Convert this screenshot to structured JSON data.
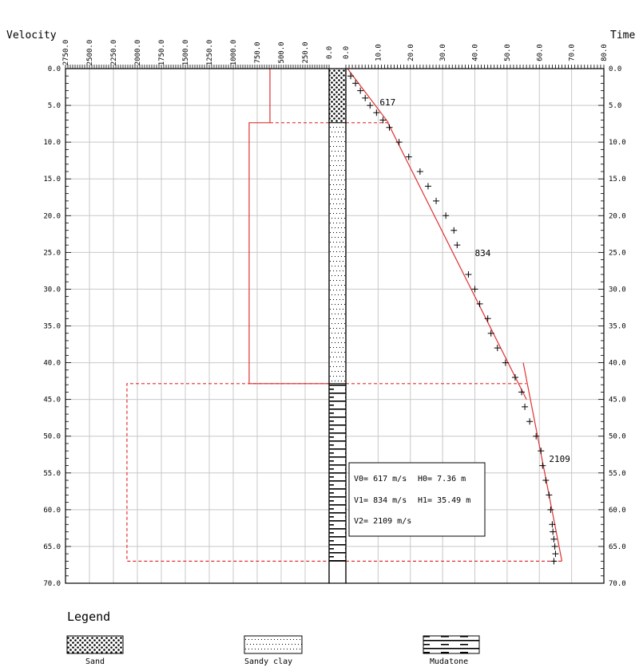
{
  "header": {
    "velocity_label": "Velocity",
    "time_label": "Time"
  },
  "legend": {
    "title": "Legend",
    "items": [
      {
        "key": "sand",
        "label": "Sand"
      },
      {
        "key": "sandy_clay",
        "label": "Sandy clay"
      },
      {
        "key": "mudstone",
        "label": "Mudatone"
      }
    ]
  },
  "results": {
    "v0": "V0=   617 m/s",
    "h0": "H0=  7.36 m",
    "v1": "V1=   834 m/s",
    "h1": "H1= 35.49 m",
    "v2": "V2=  2109 m/s"
  },
  "colors": {
    "grid": "#c8c8c8",
    "fit": "#e03030",
    "axis": "#000000"
  },
  "chart_data": {
    "type": "scatter",
    "depth_axis": {
      "range": [
        0,
        70
      ],
      "ticks": [
        0,
        5,
        10,
        15,
        20,
        25,
        30,
        35,
        40,
        45,
        50,
        55,
        60,
        65,
        70
      ],
      "tick_labels": [
        "0.0",
        "5.0",
        "10.0",
        "15.0",
        "20.0",
        "25.0",
        "30.0",
        "35.0",
        "40.0",
        "45.0",
        "50.0",
        "55.0",
        "60.0",
        "65.0",
        "70.0"
      ]
    },
    "velocity_axis": {
      "label": "Velocity",
      "reversed": true,
      "range": [
        0,
        2750
      ],
      "ticks": [
        2750,
        2500,
        2250,
        2000,
        1750,
        1500,
        1250,
        1000,
        750,
        500,
        250,
        0
      ],
      "tick_labels": [
        "2750.0",
        "2500.0",
        "2250.0",
        "2000.0",
        "1750.0",
        "1500.0",
        "1250.0",
        "1000.0",
        "750.0",
        "500.0",
        "250.0",
        "0.0"
      ]
    },
    "time_axis": {
      "label": "Time",
      "range": [
        0,
        80
      ],
      "ticks": [
        0,
        10,
        20,
        30,
        40,
        50,
        60,
        70,
        80
      ],
      "tick_labels": [
        "0.0",
        "10.0",
        "20.0",
        "30.0",
        "40.0",
        "50.0",
        "60.0",
        "70.0",
        "80.0"
      ]
    },
    "layers": [
      {
        "lithology": "sand",
        "top": 0,
        "bottom": 7.36
      },
      {
        "lithology": "sandy_clay",
        "top": 7.36,
        "bottom": 42.85
      },
      {
        "lithology": "mudstone",
        "top": 42.85,
        "bottom": 67
      }
    ],
    "interval_velocity": [
      {
        "velocity": 617,
        "top": 0,
        "bottom": 7.36
      },
      {
        "velocity": 834,
        "top": 7.36,
        "bottom": 42.85
      },
      {
        "velocity": 2109,
        "top": 42.85,
        "bottom": 67
      }
    ],
    "time_depth_points": [
      [
        1.5,
        1
      ],
      [
        3,
        2
      ],
      [
        4.5,
        3
      ],
      [
        6,
        4
      ],
      [
        7.5,
        5
      ],
      [
        9.5,
        6
      ],
      [
        11.5,
        7
      ],
      [
        13.5,
        8
      ],
      [
        16.5,
        10
      ],
      [
        19.5,
        12
      ],
      [
        23,
        14
      ],
      [
        25.5,
        16
      ],
      [
        28,
        18
      ],
      [
        31,
        20
      ],
      [
        33.5,
        22
      ],
      [
        34.5,
        24
      ],
      [
        38,
        28
      ],
      [
        40,
        30
      ],
      [
        41.5,
        32
      ],
      [
        44,
        34
      ],
      [
        45,
        36
      ],
      [
        47,
        38
      ],
      [
        49.5,
        40
      ],
      [
        52.5,
        42
      ],
      [
        54.5,
        44
      ],
      [
        55.5,
        46
      ],
      [
        57,
        48
      ],
      [
        59,
        50
      ],
      [
        60.5,
        52
      ],
      [
        61,
        54
      ],
      [
        62,
        56
      ],
      [
        63,
        58
      ],
      [
        63.5,
        60
      ],
      [
        64,
        62
      ],
      [
        64.2,
        63
      ],
      [
        64.5,
        64
      ],
      [
        64.8,
        65
      ],
      [
        65,
        66
      ],
      [
        64.5,
        67
      ]
    ],
    "fit_segments": [
      {
        "label": "617",
        "from": [
          0.5,
          0
        ],
        "to": [
          13.2,
          7.36
        ]
      },
      {
        "label": "834",
        "from": [
          13,
          7.36
        ],
        "to": [
          56,
          45
        ]
      },
      {
        "label": "2109",
        "from": [
          55,
          40
        ],
        "to": [
          67,
          67
        ]
      }
    ],
    "segment_labels": [
      {
        "text": "617",
        "at": [
          10.5,
          5
        ]
      },
      {
        "text": "834",
        "at": [
          40,
          25.5
        ]
      },
      {
        "text": "2109",
        "at": [
          63,
          53.5
        ]
      }
    ]
  }
}
